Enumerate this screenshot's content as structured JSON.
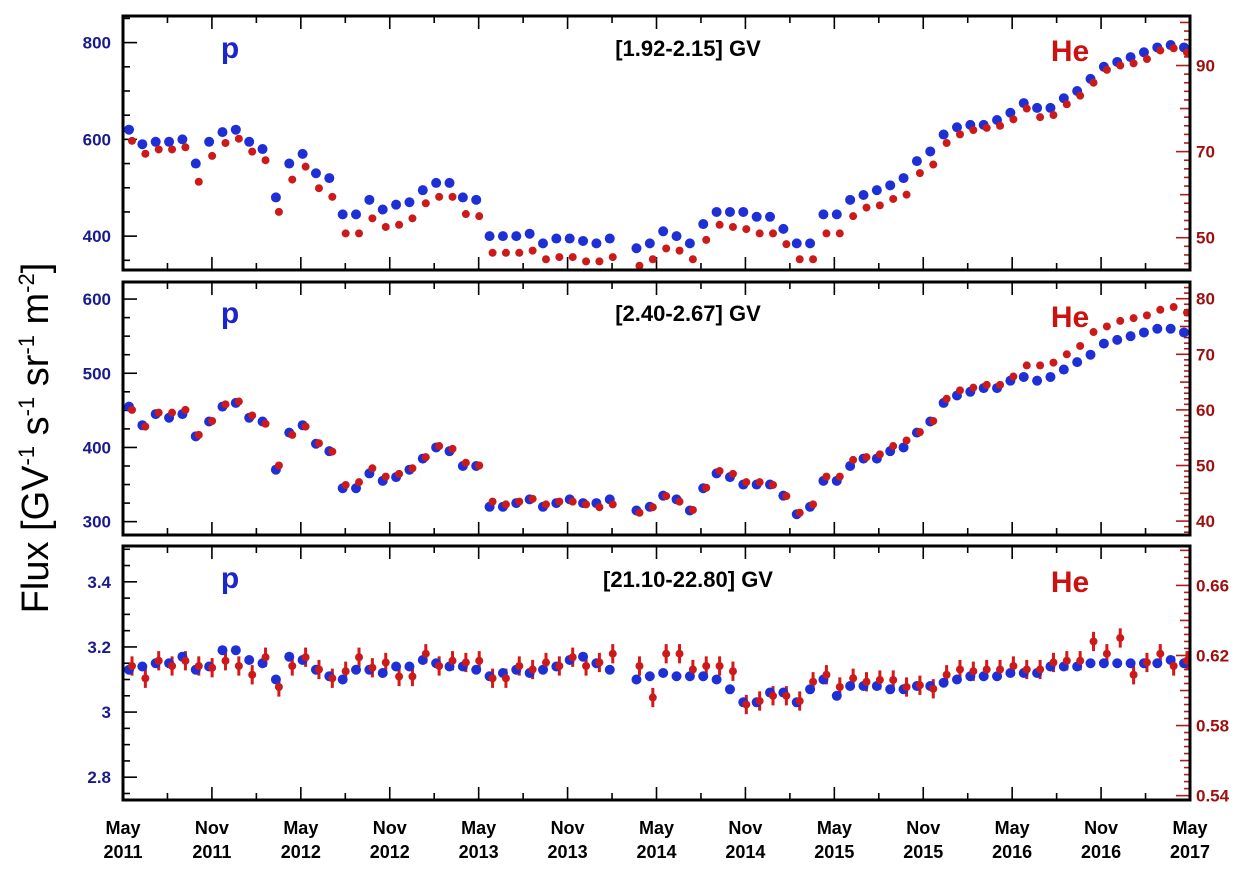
{
  "figure": {
    "ylabel": "Flux [GV",
    "ylabel_parts": [
      "Flux [GV",
      "-1",
      " s",
      "-1",
      " sr",
      "-1",
      " m",
      "-2",
      "]"
    ],
    "colors": {
      "proton": "#1f2fd6",
      "helium": "#cc1a1a",
      "left_axis": "#1a1a8c",
      "right_axis": "#9e1010"
    }
  },
  "chart_data": [
    {
      "type": "scatter",
      "range_label": "[1.92-2.15] GV",
      "p_label": "p",
      "he_label": "He",
      "x_ticks": [
        {
          "month": "May",
          "year": "2011"
        },
        {
          "month": "Nov",
          "year": "2011"
        },
        {
          "month": "May",
          "year": "2012"
        },
        {
          "month": "Nov",
          "year": "2012"
        },
        {
          "month": "May",
          "year": "2013"
        },
        {
          "month": "Nov",
          "year": "2013"
        },
        {
          "month": "May",
          "year": "2014"
        },
        {
          "month": "Nov",
          "year": "2014"
        },
        {
          "month": "May",
          "year": "2015"
        },
        {
          "month": "Nov",
          "year": "2015"
        },
        {
          "month": "May",
          "year": "2016"
        },
        {
          "month": "Nov",
          "year": "2016"
        },
        {
          "month": "May",
          "year": "2017"
        }
      ],
      "xlim": [
        "2011-05",
        "2017-05"
      ],
      "left_axis": {
        "label": "p",
        "ylim": [
          330,
          855
        ],
        "ticks": [
          400,
          600,
          800
        ]
      },
      "right_axis": {
        "label": "He",
        "ylim": [
          42.5,
          101.5
        ],
        "ticks": [
          50,
          70,
          90
        ]
      },
      "series": [
        {
          "name": "p",
          "values": [
            620,
            590,
            595,
            595,
            600,
            550,
            595,
            615,
            620,
            595,
            580,
            480,
            550,
            570,
            530,
            520,
            445,
            445,
            475,
            455,
            465,
            470,
            495,
            510,
            510,
            480,
            475,
            400,
            400,
            400,
            405,
            385,
            395,
            395,
            390,
            385,
            395,
            365,
            375,
            385,
            410,
            400,
            385,
            425,
            450,
            450,
            450,
            440,
            440,
            415,
            385,
            385,
            445,
            445,
            475,
            485,
            495,
            505,
            520,
            555,
            575,
            610,
            625,
            630,
            630,
            640,
            655,
            675,
            665,
            665,
            685,
            700,
            725,
            750,
            760,
            770,
            780,
            790,
            795,
            790
          ]
        },
        {
          "name": "He",
          "values": [
            72.5,
            69.5,
            70.5,
            70.5,
            71,
            63,
            69,
            72,
            73,
            70,
            68,
            56,
            63.5,
            66.5,
            61.5,
            59.5,
            51,
            51,
            54.5,
            52.5,
            53,
            54.5,
            58,
            59.5,
            59.5,
            55.5,
            55,
            46.5,
            46.5,
            46.5,
            47,
            45,
            45.5,
            45.5,
            44.5,
            44.5,
            45.5,
            42.5,
            43.5,
            45,
            47.5,
            47,
            45,
            49.5,
            53,
            52.5,
            52,
            51,
            51,
            48.5,
            45,
            45,
            51,
            51,
            55,
            57,
            57.5,
            59,
            60,
            65,
            67,
            72,
            74,
            75,
            75.5,
            76,
            77.5,
            80,
            78,
            78.5,
            81,
            83,
            86,
            89,
            90,
            90.5,
            91.5,
            93.5,
            94,
            93
          ]
        }
      ]
    },
    {
      "type": "scatter",
      "range_label": "[2.40-2.67] GV",
      "p_label": "p",
      "he_label": "He",
      "left_axis": {
        "label": "p",
        "ylim": [
          282,
          623
        ],
        "ticks": [
          300,
          400,
          500,
          600
        ]
      },
      "right_axis": {
        "label": "He",
        "ylim": [
          37.5,
          83
        ],
        "ticks": [
          40,
          50,
          60,
          70,
          80
        ]
      },
      "series": [
        {
          "name": "p",
          "values": [
            455,
            430,
            445,
            440,
            445,
            415,
            435,
            455,
            460,
            440,
            435,
            370,
            420,
            430,
            405,
            395,
            345,
            345,
            365,
            355,
            360,
            370,
            385,
            400,
            395,
            375,
            375,
            320,
            320,
            325,
            330,
            320,
            325,
            330,
            325,
            325,
            330,
            300,
            315,
            320,
            335,
            330,
            315,
            345,
            365,
            360,
            350,
            350,
            350,
            335,
            310,
            320,
            355,
            355,
            375,
            385,
            385,
            395,
            400,
            420,
            435,
            460,
            470,
            475,
            480,
            480,
            490,
            495,
            490,
            495,
            505,
            515,
            525,
            540,
            545,
            550,
            555,
            560,
            560,
            555
          ]
        },
        {
          "name": "He",
          "values": [
            60,
            57,
            59.5,
            59.5,
            60,
            55.5,
            58,
            61,
            61.5,
            59,
            57.5,
            50,
            55.5,
            57,
            54,
            52.5,
            46.5,
            47,
            49.5,
            48,
            48.5,
            49.5,
            51.5,
            53.5,
            53,
            50.5,
            50,
            43.5,
            43,
            43.5,
            44,
            43,
            43.5,
            43.5,
            43,
            42.5,
            43,
            40,
            41.5,
            42.5,
            44.5,
            43.5,
            42,
            46,
            49,
            48.5,
            47,
            47,
            46.5,
            44.5,
            41.5,
            43,
            48,
            48,
            51,
            51.5,
            52,
            53.5,
            54.5,
            56,
            58,
            62,
            63.5,
            64,
            64.5,
            64.5,
            66,
            68,
            68,
            68.5,
            70,
            71.5,
            74,
            75,
            76,
            76.5,
            77,
            78,
            78.5,
            77.5
          ]
        }
      ]
    },
    {
      "type": "scatter",
      "range_label": "[21.10-22.80] GV",
      "p_label": "p",
      "he_label": "He",
      "left_axis": {
        "label": "p",
        "ylim": [
          2.73,
          3.51
        ],
        "ticks": [
          2.8,
          3,
          3.2,
          3.4
        ],
        "tick_labels": [
          "2.8",
          "3",
          "3.2",
          "3.4"
        ]
      },
      "right_axis": {
        "label": "He",
        "ylim": [
          0.5375,
          0.6825
        ],
        "ticks": [
          0.54,
          0.58,
          0.62,
          0.66
        ]
      },
      "series": [
        {
          "name": "p",
          "values": [
            3.13,
            3.14,
            3.15,
            3.15,
            3.17,
            3.13,
            3.14,
            3.19,
            3.19,
            3.16,
            3.15,
            3.1,
            3.17,
            3.16,
            3.13,
            3.11,
            3.1,
            3.13,
            3.13,
            3.12,
            3.14,
            3.14,
            3.16,
            3.15,
            3.14,
            3.14,
            3.13,
            3.11,
            3.12,
            3.13,
            3.12,
            3.13,
            3.14,
            3.16,
            3.17,
            3.15,
            3.13,
            3.12,
            3.1,
            3.11,
            3.12,
            3.11,
            3.11,
            3.11,
            3.1,
            3.07,
            3.03,
            3.03,
            3.06,
            3.06,
            3.03,
            3.07,
            3.1,
            3.05,
            3.08,
            3.08,
            3.08,
            3.07,
            3.07,
            3.08,
            3.08,
            3.09,
            3.1,
            3.11,
            3.11,
            3.11,
            3.12,
            3.12,
            3.12,
            3.14,
            3.14,
            3.14,
            3.15,
            3.15,
            3.15,
            3.15,
            3.15,
            3.15,
            3.16,
            3.15
          ]
        },
        {
          "name": "He",
          "values": [
            0.614,
            0.607,
            0.617,
            0.614,
            0.617,
            0.614,
            0.613,
            0.617,
            0.614,
            0.609,
            0.619,
            0.602,
            0.614,
            0.619,
            0.612,
            0.607,
            0.611,
            0.619,
            0.613,
            0.616,
            0.608,
            0.608,
            0.621,
            0.614,
            0.617,
            0.616,
            0.617,
            0.607,
            0.607,
            0.614,
            0.612,
            0.616,
            0.614,
            0.619,
            0.614,
            0.616,
            0.621,
            0.603,
            0.614,
            0.596,
            0.621,
            0.621,
            0.612,
            0.614,
            0.614,
            0.611,
            0.592,
            0.594,
            0.597,
            0.597,
            0.594,
            0.605,
            0.609,
            0.602,
            0.607,
            0.605,
            0.606,
            0.606,
            0.602,
            0.603,
            0.601,
            0.609,
            0.612,
            0.611,
            0.612,
            0.612,
            0.614,
            0.612,
            0.612,
            0.616,
            0.617,
            0.617,
            0.628,
            0.621,
            0.63,
            0.609,
            0.616,
            0.621,
            0.614,
            0.617
          ]
        }
      ]
    }
  ]
}
